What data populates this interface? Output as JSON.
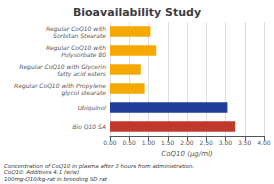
{
  "chart_data": {
    "type": "bar",
    "orientation": "horizontal",
    "title": "Bioavailability Study",
    "categories": [
      "Regular CoQ10 with\nSorbitan Stearate",
      "Regular CoQ10 with\nPolysorbate 80",
      "Regular CoQ10 with Glycerin\nfatty acid esters",
      "Regular CoQ10 with Propylene\nglycol stearate",
      "Ubiquinol",
      "Bio Q10 SA"
    ],
    "values": [
      1.05,
      1.2,
      0.8,
      0.9,
      3.05,
      3.25
    ],
    "colors": [
      "#F5A800",
      "#F5A800",
      "#F5A800",
      "#F5A800",
      "#1F3D99",
      "#C0392B"
    ],
    "xlabel": "CoQ10 (μg/ml)",
    "xlim": [
      0,
      4.0
    ],
    "xticks": [
      {
        "value": 0.0,
        "label": "0.00"
      },
      {
        "value": 0.5,
        "label": "0.50"
      },
      {
        "value": 1.0,
        "label": "1.00"
      },
      {
        "value": 1.5,
        "label": "1.50"
      },
      {
        "value": 2.0,
        "label": "2.00"
      },
      {
        "value": 2.5,
        "label": "2.50"
      },
      {
        "value": 3.0,
        "label": "3.00"
      },
      {
        "value": 3.5,
        "label": "3.50"
      },
      {
        "value": 4.0,
        "label": "4.00"
      }
    ],
    "grid": true,
    "footnote": "Concentration of CoQ10 in plasma after 3 hours from administration.\nCoQ10: Additives 4:1 (w/w)\n100mg-Q10/kg-rat in breeding SD rat"
  }
}
